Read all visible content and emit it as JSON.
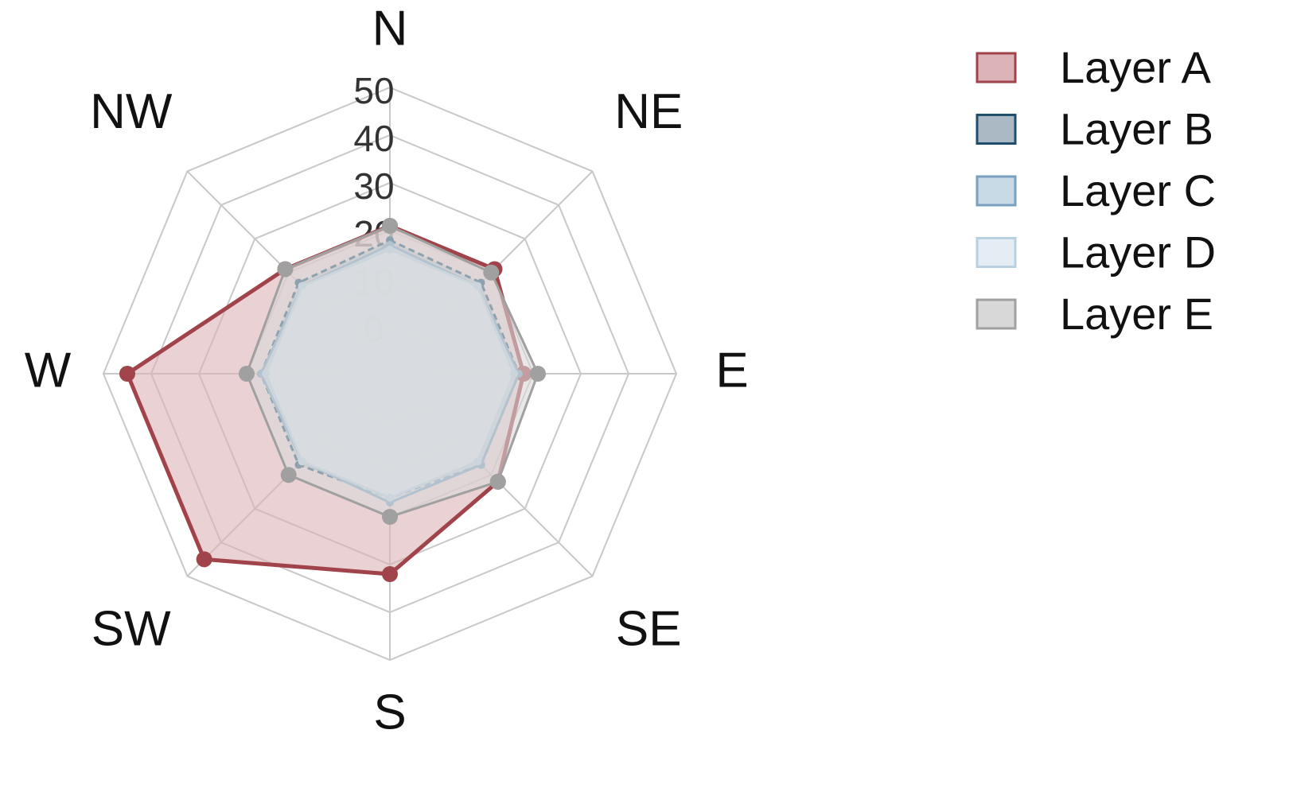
{
  "chart_data": {
    "type": "radar",
    "categories": [
      "N",
      "NE",
      "E",
      "SE",
      "S",
      "SW",
      "W",
      "NW"
    ],
    "rlim": [
      -10,
      50
    ],
    "rticks": [
      0,
      10,
      20,
      30,
      40,
      50
    ],
    "grid": true,
    "legend": "upper right",
    "series": [
      {
        "name": "Layer A",
        "color": "#a0434a",
        "fill": "#dcb3b7",
        "values": [
          21,
          21,
          18,
          22,
          32,
          45,
          45,
          21
        ]
      },
      {
        "name": "Layer B",
        "color": "#1f4e6e",
        "fill": "#aab9c4",
        "values": [
          18,
          17,
          17,
          17,
          16,
          17,
          17,
          17
        ]
      },
      {
        "name": "Layer C",
        "color": "#7aa0c0",
        "fill": "#c8d9e6",
        "values": [
          17,
          16,
          17,
          17,
          17,
          16,
          17,
          16
        ]
      },
      {
        "name": "Layer D",
        "color": "#b8d0e0",
        "fill": "#e4edf3",
        "values": [
          16,
          16,
          16,
          16,
          16,
          16,
          16,
          16
        ]
      },
      {
        "name": "Layer E",
        "color": "#a0a0a0",
        "fill": "#d8d8d8",
        "values": [
          21,
          20,
          21,
          22,
          20,
          20,
          20,
          21
        ]
      }
    ]
  }
}
